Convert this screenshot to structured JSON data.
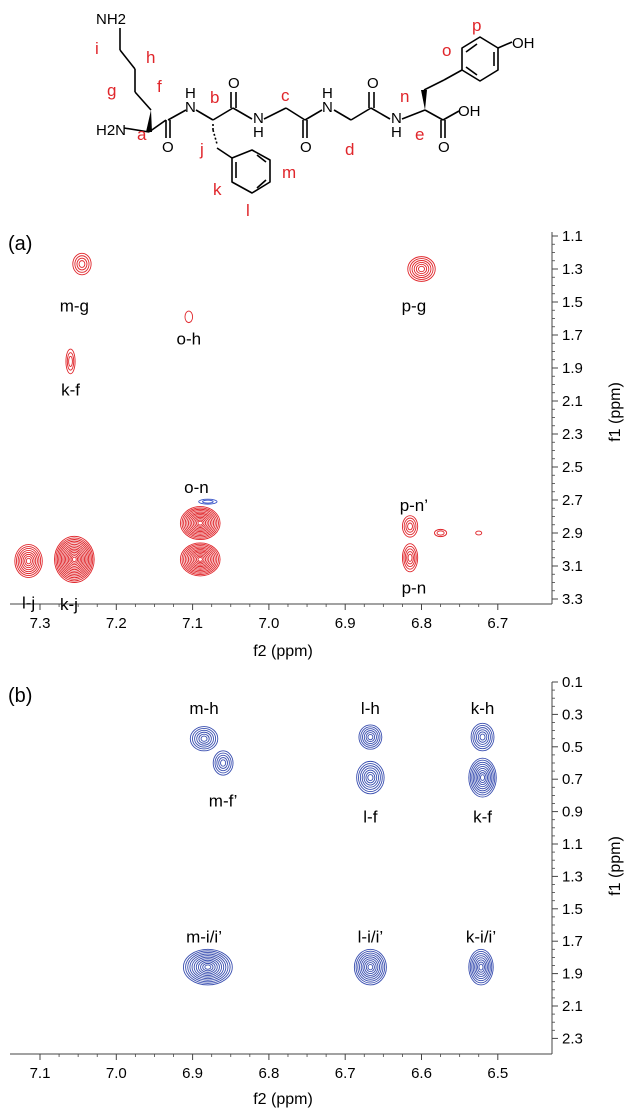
{
  "colors": {
    "panel_a_contour": "#e0262b",
    "panel_a_negative": "#3a55c8",
    "panel_b_contour": "#3a4fb0",
    "structure_labels": "#e0262b"
  },
  "structure": {
    "atoms": [
      "NH2",
      "H2N",
      "N",
      "H",
      "N",
      "H",
      "N",
      "H",
      "N",
      "H",
      "O",
      "O",
      "O",
      "O",
      "OH",
      "OH"
    ],
    "letters": [
      "a",
      "b",
      "c",
      "d",
      "e",
      "f",
      "g",
      "h",
      "i",
      "j",
      "k",
      "l",
      "m",
      "n",
      "o",
      "p"
    ]
  },
  "chart_data": [
    {
      "type": "heatmap",
      "panel_label": "(a)",
      "xlabel": "f2 (ppm)",
      "ylabel": "f1 (ppm)",
      "xlim": [
        7.38,
        6.7
      ],
      "ylim": [
        1.1,
        3.5
      ],
      "x_ticks": [
        "7.3",
        "7.2",
        "7.1",
        "7.0",
        "6.9",
        "6.8",
        "6.7"
      ],
      "y_ticks": [
        "1.1",
        "1.3",
        "1.5",
        "1.7",
        "1.9",
        "2.1",
        "2.3",
        "2.5",
        "2.7",
        "2.9",
        "3.1",
        "3.3"
      ],
      "x_reversed": true,
      "y_reversed": true,
      "peaks": [
        {
          "label": "m-g",
          "x": 7.245,
          "y": 1.27,
          "rx": 0.012,
          "ry": 0.065,
          "levels": 4,
          "label_x": 7.255,
          "label_y": 1.52
        },
        {
          "label": "o-h",
          "x": 7.105,
          "y": 1.59,
          "rx": 0.005,
          "ry": 0.035,
          "levels": 1,
          "label_x": 7.105,
          "label_y": 1.72
        },
        {
          "label": "k-f",
          "x": 7.26,
          "y": 1.86,
          "rx": 0.006,
          "ry": 0.075,
          "levels": 3,
          "label_x": 7.26,
          "label_y": 2.03
        },
        {
          "label": "p-g",
          "x": 6.8,
          "y": 1.3,
          "rx": 0.018,
          "ry": 0.075,
          "levels": 6,
          "label_x": 6.81,
          "label_y": 1.52
        },
        {
          "label": "o-n",
          "x": 7.09,
          "y": 2.84,
          "rx": 0.026,
          "ry": 0.1,
          "levels": 12,
          "label_x": 7.095,
          "label_y": 2.62
        },
        {
          "label": "",
          "x": 7.09,
          "y": 3.06,
          "rx": 0.026,
          "ry": 0.1,
          "levels": 12
        },
        {
          "label": "l-j",
          "x": 7.315,
          "y": 3.07,
          "rx": 0.018,
          "ry": 0.1,
          "levels": 8,
          "label_x": 7.315,
          "label_y": 3.32
        },
        {
          "label": "k-j",
          "x": 7.255,
          "y": 3.06,
          "rx": 0.026,
          "ry": 0.14,
          "levels": 14,
          "label_x": 7.262,
          "label_y": 3.33
        },
        {
          "label": "p-n’",
          "x": 6.815,
          "y": 2.86,
          "rx": 0.01,
          "ry": 0.065,
          "levels": 4,
          "label_x": 6.81,
          "label_y": 2.73
        },
        {
          "label": "p-n",
          "x": 6.815,
          "y": 3.05,
          "rx": 0.01,
          "ry": 0.085,
          "levels": 5,
          "label_x": 6.81,
          "label_y": 3.23
        },
        {
          "label": "",
          "x": 6.775,
          "y": 2.9,
          "rx": 0.008,
          "ry": 0.022,
          "levels": 2
        },
        {
          "label": "",
          "x": 6.725,
          "y": 2.9,
          "rx": 0.004,
          "ry": 0.012,
          "levels": 1
        }
      ],
      "negative_peaks": [
        {
          "label": "",
          "x": 7.08,
          "y": 2.71,
          "rx": 0.012,
          "ry": 0.015,
          "levels": 2
        }
      ]
    },
    {
      "type": "heatmap",
      "panel_label": "(b)",
      "xlabel": "f2 (ppm)",
      "ylabel": "f1 (ppm)",
      "xlim": [
        7.12,
        6.44
      ],
      "ylim": [
        0.1,
        2.3
      ],
      "x_ticks": [
        "7.1",
        "7.0",
        "6.9",
        "6.8",
        "6.7",
        "6.6",
        "6.5"
      ],
      "y_ticks": [
        "0.1",
        "0.3",
        "0.5",
        "0.7",
        "0.9",
        "1.1",
        "1.3",
        "1.5",
        "1.7",
        "1.9",
        "2.1",
        "2.3"
      ],
      "x_reversed": true,
      "y_reversed": true,
      "peaks": [
        {
          "label": "m-h",
          "x": 6.885,
          "y": 0.45,
          "rx": 0.018,
          "ry": 0.075,
          "levels": 6,
          "label_x": 6.885,
          "label_y": 0.26
        },
        {
          "label": "m-f’",
          "x": 6.86,
          "y": 0.6,
          "rx": 0.013,
          "ry": 0.075,
          "levels": 5,
          "label_x": 6.86,
          "label_y": 0.83
        },
        {
          "label": "l-h",
          "x": 6.667,
          "y": 0.44,
          "rx": 0.015,
          "ry": 0.075,
          "levels": 6,
          "label_x": 6.667,
          "label_y": 0.26
        },
        {
          "label": "l-f",
          "x": 6.667,
          "y": 0.69,
          "rx": 0.018,
          "ry": 0.1,
          "levels": 7,
          "label_x": 6.667,
          "label_y": 0.93
        },
        {
          "label": "k-h",
          "x": 6.52,
          "y": 0.44,
          "rx": 0.015,
          "ry": 0.085,
          "levels": 6,
          "label_x": 6.52,
          "label_y": 0.26
        },
        {
          "label": "k-f",
          "x": 6.52,
          "y": 0.69,
          "rx": 0.018,
          "ry": 0.12,
          "levels": 9,
          "label_x": 6.52,
          "label_y": 0.93
        },
        {
          "label": "m-i/i’",
          "x": 6.88,
          "y": 1.86,
          "rx": 0.032,
          "ry": 0.11,
          "levels": 11,
          "label_x": 6.885,
          "label_y": 1.67
        },
        {
          "label": "l-i/i’",
          "x": 6.667,
          "y": 1.86,
          "rx": 0.021,
          "ry": 0.11,
          "levels": 9,
          "label_x": 6.667,
          "label_y": 1.67
        },
        {
          "label": "k-i/i’",
          "x": 6.522,
          "y": 1.86,
          "rx": 0.016,
          "ry": 0.11,
          "levels": 8,
          "label_x": 6.522,
          "label_y": 1.67
        }
      ],
      "negative_peaks": []
    }
  ]
}
